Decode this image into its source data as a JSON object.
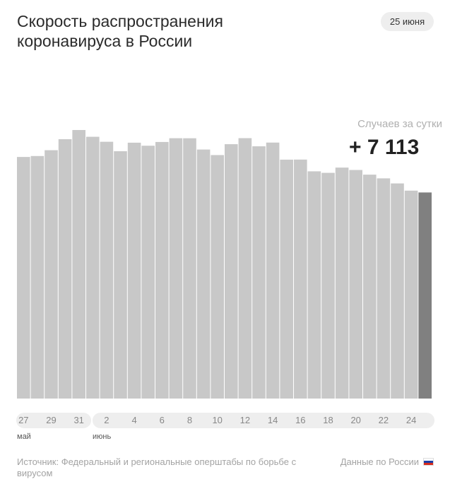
{
  "header": {
    "title": "Скорость распространения коронавируса в России",
    "date": "25 июня"
  },
  "highlight": {
    "label": "Случаев за сутки",
    "value": "+ 7 113"
  },
  "axis": {
    "ticks": [
      "27",
      "29",
      "31",
      "2",
      "4",
      "6",
      "8",
      "10",
      "12",
      "14",
      "16",
      "18",
      "20",
      "22",
      "24"
    ],
    "month_may": "май",
    "month_june": "июнь"
  },
  "footer": {
    "source": "Источник: Федеральный и региональные оперштабы по борьбе с вирусом",
    "data_link": "Данные по России",
    "flag_icon": "russia-flag-icon"
  },
  "colors": {
    "bar": "#c8c8c8",
    "bar_highlight": "#808080",
    "axis_bg": "#eeeeee"
  },
  "chart_data": {
    "type": "bar",
    "title": "Скорость распространения коронавируса в России",
    "categories": [
      "27 мая",
      "28 мая",
      "29 мая",
      "30 мая",
      "31 мая",
      "1 июня",
      "2 июня",
      "3 июня",
      "4 июня",
      "5 июня",
      "6 июня",
      "7 июня",
      "8 июня",
      "9 июня",
      "10 июня",
      "11 июня",
      "12 июня",
      "13 июня",
      "14 июня",
      "15 июня",
      "16 июня",
      "17 июня",
      "18 июня",
      "19 июня",
      "20 июня",
      "21 июня",
      "22 июня",
      "23 июня",
      "24 июня",
      "25 июня"
    ],
    "values": [
      8338,
      8371,
      8572,
      8952,
      9268,
      9035,
      8863,
      8536,
      8831,
      8726,
      8855,
      8985,
      8984,
      8595,
      8404,
      8779,
      8987,
      8706,
      8835,
      8246,
      8248,
      7843,
      7790,
      7972,
      7889,
      7728,
      7600,
      7425,
      7176,
      7113
    ],
    "highlight_index": 29,
    "ylim": [
      0,
      9268
    ],
    "xlabel": "",
    "ylabel": "Случаев за сутки",
    "grid": false,
    "legend": "none"
  }
}
